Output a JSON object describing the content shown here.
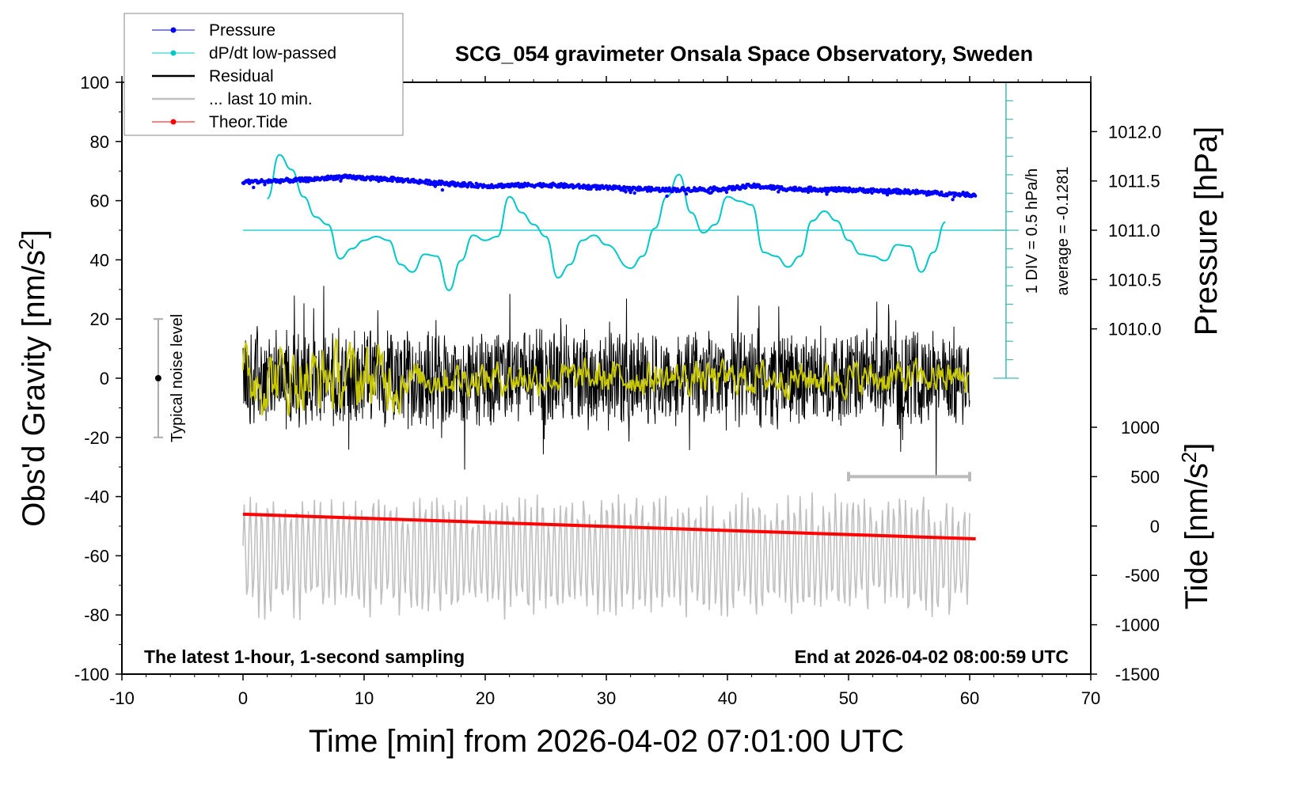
{
  "chart_data": {
    "type": "line",
    "title": "SCG_054 gravimeter Onsala Space Observatory, Sweden",
    "xlabel": "Time [min] from 2026-04-02 07:01:00 UTC",
    "ylabel_left": "Obs'd Gravity [nm/s",
    "ylabel_left_sup": "2",
    "ylabel_left_end": "]",
    "ylabel_right_top": "Pressure [hPa]",
    "ylabel_right_bottom": "Tide [nm/s",
    "ylabel_right_bottom_sup": "2",
    "ylabel_right_bottom_end": "]",
    "xlim": [
      -10,
      70
    ],
    "ylim_left": [
      -100,
      100
    ],
    "ylim_pressure": [
      1009.5,
      1012.5
    ],
    "ylim_tide": [
      -1500,
      1000
    ],
    "x_ticks": [
      "-10",
      "0",
      "10",
      "20",
      "30",
      "40",
      "50",
      "60",
      "70"
    ],
    "y_ticks_left": [
      "100",
      "80",
      "60",
      "40",
      "20",
      "0",
      "-20",
      "-40",
      "-60",
      "-80",
      "-100"
    ],
    "y_ticks_pressure": [
      "1012.0",
      "1011.5",
      "1011.0",
      "1010.5",
      "1010.0"
    ],
    "y_ticks_tide": [
      "1000",
      "500",
      "0",
      "-500",
      "-1000",
      "-1500"
    ],
    "legend": {
      "placement": "top-left",
      "entries": [
        {
          "label": "Pressure",
          "color": "#0000ff",
          "marker": true
        },
        {
          "label": "dP/dt low-passed",
          "color": "#00c8c8",
          "marker": true
        },
        {
          "label": "Residual",
          "color": "#000000",
          "marker": false
        },
        {
          "label": "... last 10 min.",
          "color": "#c0c0c0",
          "marker": false
        },
        {
          "label": "Theor.Tide",
          "color": "#ff0000",
          "marker": true
        }
      ]
    },
    "annotations": {
      "bottom_left": "The latest 1-hour, 1-second sampling",
      "bottom_right": "End at 2026-04-02 08:00:59 UTC",
      "noise_label": "Typical noise level",
      "noise_range": [
        -20,
        20
      ],
      "div_label": "1 DIV = 0.5 hPa/h",
      "average_label": "average = -0.1281",
      "last10_range_min": [
        50,
        60
      ]
    },
    "series": [
      {
        "name": "Pressure",
        "unit": "hPa",
        "color": "#0000ff",
        "x": [
          0,
          5,
          8,
          12,
          16,
          20,
          25,
          30,
          35,
          40,
          42,
          45,
          50,
          55,
          58,
          60.5
        ],
        "values": [
          1011.49,
          1011.51,
          1011.54,
          1011.52,
          1011.48,
          1011.45,
          1011.46,
          1011.43,
          1011.41,
          1011.42,
          1011.45,
          1011.42,
          1011.41,
          1011.39,
          1011.37,
          1011.36
        ]
      },
      {
        "name": "dP/dt low-passed",
        "unit": "hPa/h",
        "color": "#00c8c8",
        "zero_level_pressure": 1011.0,
        "x": [
          2,
          3,
          4,
          5,
          6,
          7,
          8,
          9,
          10,
          11,
          12,
          13,
          14,
          15,
          16,
          17,
          18,
          19,
          20,
          21,
          22,
          23,
          24,
          25,
          26,
          27,
          28,
          29,
          30,
          32,
          33,
          34,
          35,
          36,
          37,
          38,
          39,
          40,
          41,
          42,
          43,
          44,
          45,
          46,
          47,
          48,
          49,
          50,
          51,
          52,
          53,
          54,
          55,
          56,
          57,
          58
        ],
        "values": [
          0.5,
          1.19,
          0.96,
          0.53,
          0.21,
          0.09,
          -0.45,
          -0.29,
          -0.16,
          -0.1,
          -0.16,
          -0.54,
          -0.66,
          -0.38,
          -0.41,
          -0.95,
          -0.48,
          -0.08,
          -0.16,
          -0.1,
          0.53,
          0.28,
          0.09,
          -0.1,
          -0.75,
          -0.54,
          -0.16,
          -0.08,
          -0.23,
          -0.6,
          -0.41,
          0.03,
          0.53,
          0.88,
          0.28,
          -0.04,
          0.09,
          0.53,
          0.46,
          0.4,
          -0.35,
          -0.41,
          -0.58,
          -0.41,
          0.15,
          0.3,
          0.15,
          -0.16,
          -0.38,
          -0.41,
          -0.48,
          -0.23,
          -0.25,
          -0.66,
          -0.35,
          0.13
        ]
      },
      {
        "name": "Residual",
        "unit": "nm/s2",
        "color": "#000000",
        "x_range": [
          0,
          60
        ],
        "approx_range": [
          -40,
          45
        ]
      },
      {
        "name": "Residual smoothed",
        "unit": "nm/s2",
        "color": "#c8c800",
        "x_range": [
          0,
          60
        ],
        "approx_range": [
          -12,
          15
        ]
      },
      {
        "name": "... last 10 min.",
        "unit": "nm/s2",
        "color": "#c0c0c0",
        "x_range": [
          0,
          60
        ],
        "offset": -60
      },
      {
        "name": "Theor.Tide",
        "unit": "nm/s2",
        "color": "#ff0000",
        "x": [
          0,
          60.5
        ],
        "values": [
          120,
          -130
        ]
      }
    ]
  }
}
